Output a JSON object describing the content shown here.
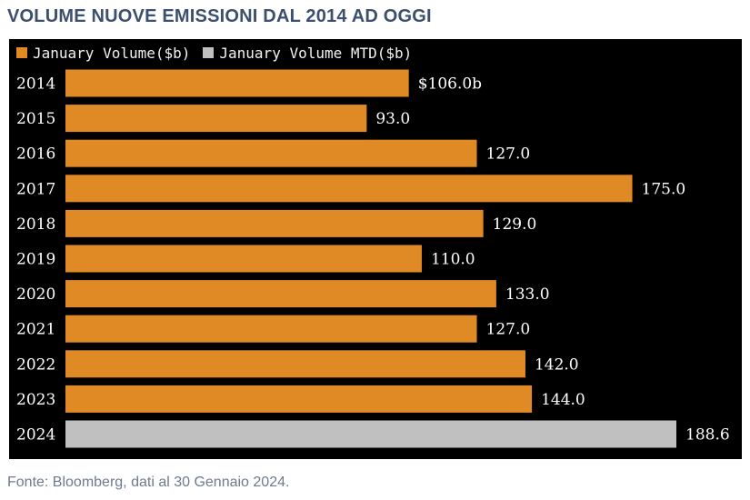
{
  "title": "VOLUME NUOVE EMISSIONI DAL 2014 AD OGGI",
  "source": "Fonte: Bloomberg, dati al 30 Gennaio 2024.",
  "colors": {
    "background": "#000000",
    "title": "#3d4f6e",
    "source": "#6d7a90",
    "january_volume": "#e08a26",
    "january_volume_mtd": "#c0c0c0",
    "label_text": "#ffffff"
  },
  "legend": [
    {
      "label": "January Volume($b)",
      "color": "#e08a26"
    },
    {
      "label": "January Volume MTD($b)",
      "color": "#c0c0c0"
    }
  ],
  "chart_data": {
    "type": "bar",
    "orientation": "horizontal",
    "categories": [
      "2014",
      "2015",
      "2016",
      "2017",
      "2018",
      "2019",
      "2020",
      "2021",
      "2022",
      "2023",
      "2024"
    ],
    "series": [
      {
        "name": "January Volume($b)",
        "values": [
          106.0,
          93.0,
          127.0,
          175.0,
          129.0,
          110.0,
          133.0,
          127.0,
          142.0,
          144.0,
          null
        ]
      },
      {
        "name": "January Volume MTD($b)",
        "values": [
          null,
          null,
          null,
          null,
          null,
          null,
          null,
          null,
          null,
          null,
          188.6
        ]
      }
    ],
    "data_labels": [
      "$106.0b",
      "93.0",
      "127.0",
      "175.0",
      "129.0",
      "110.0",
      "133.0",
      "127.0",
      "142.0",
      "144.0",
      "188.6"
    ],
    "xlim": [
      0,
      188.6
    ],
    "grid": false,
    "legend_position": "top-left"
  }
}
